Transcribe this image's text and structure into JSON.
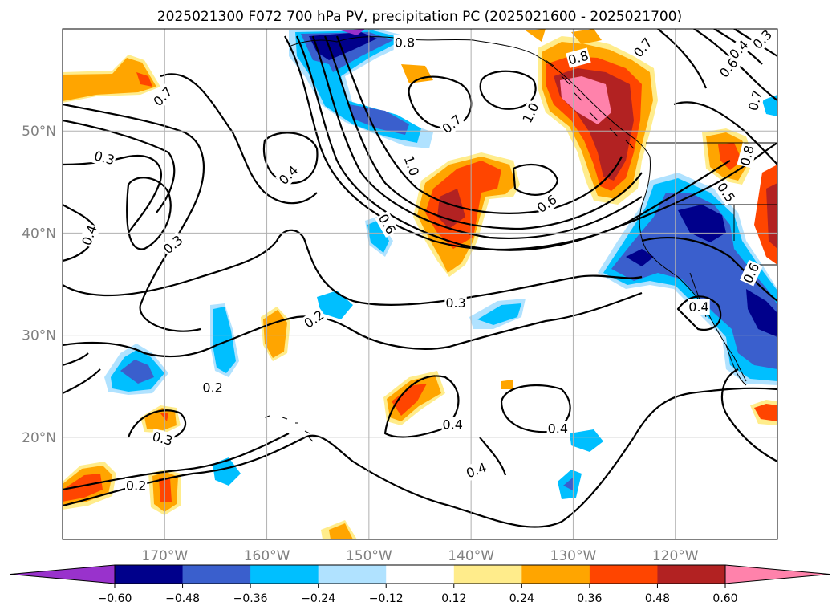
{
  "title": "2025021300 F072 700 hPa PV, precipitation PC (2025021600 - 2025021700)",
  "map": {
    "lon_range": [
      -180,
      -110
    ],
    "lat_range": [
      10,
      60
    ],
    "gridlines": true,
    "lon_ticks": [
      {
        "value": -170,
        "label": "170°W"
      },
      {
        "value": -160,
        "label": "160°W"
      },
      {
        "value": -150,
        "label": "150°W"
      },
      {
        "value": -140,
        "label": "140°W"
      },
      {
        "value": -130,
        "label": "130°W"
      },
      {
        "value": -120,
        "label": "120°W"
      }
    ],
    "lat_ticks": [
      {
        "value": 20,
        "label": "20°N"
      },
      {
        "value": 30,
        "label": "30°N"
      },
      {
        "value": 40,
        "label": "40°N"
      },
      {
        "value": 50,
        "label": "50°N"
      }
    ]
  },
  "colorbar": {
    "extend": "both",
    "colors": [
      "#9932cc",
      "#00008b",
      "#3a5fcd",
      "#00bfff",
      "#b0e2ff",
      "#ffffff",
      "#ffec8b",
      "#ffa500",
      "#ff4500",
      "#b22222",
      "#ff82ab"
    ],
    "tick_values": [
      -0.6,
      -0.48,
      -0.36,
      -0.24,
      -0.12,
      0.12,
      0.24,
      0.36,
      0.48,
      0.6
    ],
    "tick_labels": [
      "−0.60",
      "−0.48",
      "−0.36",
      "−0.24",
      "−0.12",
      "0.12",
      "0.24",
      "0.36",
      "0.48",
      "0.60"
    ]
  },
  "contour_labels": [
    {
      "text": "0.8",
      "lon": -146.5,
      "lat": 58.7,
      "rot": 0
    },
    {
      "text": "0.8",
      "lon": -129.5,
      "lat": 57.2,
      "rot": -15
    },
    {
      "text": "0.7",
      "lon": -123.2,
      "lat": 58.2,
      "rot": -50
    },
    {
      "text": "0.4",
      "lon": -113.8,
      "lat": 58.0,
      "rot": -45
    },
    {
      "text": "0.6",
      "lon": -114.8,
      "lat": 56.2,
      "rot": -50
    },
    {
      "text": "0.3",
      "lon": -111.5,
      "lat": 59.0,
      "rot": -45
    },
    {
      "text": "0.7",
      "lon": -112.2,
      "lat": 53.0,
      "rot": -75
    },
    {
      "text": "0.7",
      "lon": -170.2,
      "lat": 53.4,
      "rot": -45
    },
    {
      "text": "0.7",
      "lon": -141.9,
      "lat": 50.7,
      "rot": -40
    },
    {
      "text": "1.0",
      "lon": -134.2,
      "lat": 51.8,
      "rot": -65
    },
    {
      "text": "1.0",
      "lon": -145.8,
      "lat": 46.6,
      "rot": 70
    },
    {
      "text": "0.3",
      "lon": -175.9,
      "lat": 47.4,
      "rot": 15
    },
    {
      "text": "0.4",
      "lon": -157.9,
      "lat": 45.7,
      "rot": -45
    },
    {
      "text": "0.6",
      "lon": -148.2,
      "lat": 40.9,
      "rot": 60
    },
    {
      "text": "0.6",
      "lon": -132.6,
      "lat": 42.9,
      "rot": -35
    },
    {
      "text": "0.5",
      "lon": -115.0,
      "lat": 44.0,
      "rot": 55
    },
    {
      "text": "0.8",
      "lon": -113.0,
      "lat": 47.6,
      "rot": -75
    },
    {
      "text": "0.4",
      "lon": -177.4,
      "lat": 39.8,
      "rot": -70
    },
    {
      "text": "0.3",
      "lon": -169.2,
      "lat": 38.9,
      "rot": -40
    },
    {
      "text": "0.3",
      "lon": -141.5,
      "lat": 33.2,
      "rot": 0
    },
    {
      "text": "0.2",
      "lon": -155.4,
      "lat": 31.6,
      "rot": -35
    },
    {
      "text": "0.6",
      "lon": -112.6,
      "lat": 36.1,
      "rot": -65
    },
    {
      "text": "0.4",
      "lon": -117.7,
      "lat": 32.8,
      "rot": 0
    },
    {
      "text": "0.2",
      "lon": -165.3,
      "lat": 24.9,
      "rot": 0
    },
    {
      "text": "0.3",
      "lon": -170.2,
      "lat": 19.9,
      "rot": 15
    },
    {
      "text": "0.4",
      "lon": -141.8,
      "lat": 21.3,
      "rot": 0
    },
    {
      "text": "0.4",
      "lon": -131.5,
      "lat": 20.9,
      "rot": 0
    },
    {
      "text": "0.4",
      "lon": -139.5,
      "lat": 16.8,
      "rot": -20
    },
    {
      "text": "0.2",
      "lon": -172.8,
      "lat": 15.3,
      "rot": 0
    }
  ]
}
